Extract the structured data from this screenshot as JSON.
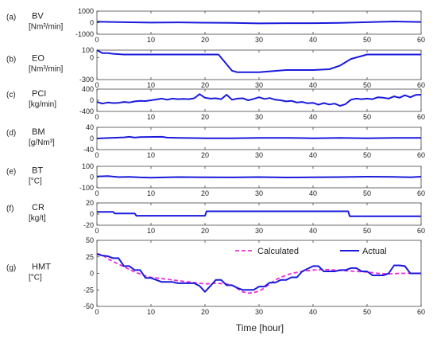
{
  "panels": [
    {
      "tag": "(a)",
      "name": "BV",
      "unit": "[Nm³/min]",
      "yticks": [
        "1000",
        "0",
        "-1000"
      ],
      "ylim": [
        -1000,
        1000
      ],
      "series": [
        {
          "name": "",
          "color": "#1a1adb",
          "style": "solid",
          "x": [
            0,
            5,
            10,
            15,
            20,
            25,
            30,
            35,
            40,
            45,
            50,
            55,
            60
          ],
          "y": [
            80,
            40,
            10,
            30,
            0,
            -20,
            -60,
            -40,
            -40,
            -20,
            40,
            100,
            60
          ]
        }
      ]
    },
    {
      "tag": "(b)",
      "name": "EO",
      "unit": "[Nm³/min]",
      "yticks": [
        "100",
        "0",
        "-300"
      ],
      "ylim": [
        -300,
        100
      ],
      "series": [
        {
          "name": "",
          "color": "#1a1adb",
          "style": "solid",
          "x": [
            0,
            1,
            2,
            3,
            5,
            10,
            15,
            20,
            22.5,
            25,
            26,
            30,
            35,
            40,
            43,
            45,
            47,
            50,
            55,
            60
          ],
          "y": [
            100,
            60,
            60,
            50,
            40,
            40,
            40,
            40,
            40,
            -180,
            -200,
            -200,
            -170,
            -170,
            -160,
            -110,
            -20,
            40,
            40,
            40
          ]
        }
      ]
    },
    {
      "tag": "(c)",
      "name": "PCI",
      "unit": "[kg/min]",
      "yticks": [
        "400",
        "0",
        "-400"
      ],
      "ylim": [
        -400,
        400
      ],
      "series": [
        {
          "name": "",
          "color": "#1a1adb",
          "style": "solid",
          "x": [
            0,
            1,
            2,
            3,
            4,
            5,
            6,
            7,
            8,
            9,
            10,
            11,
            12,
            13,
            14,
            15,
            16,
            17,
            18,
            19,
            20,
            21,
            22,
            23,
            24,
            25,
            26,
            27,
            28,
            29,
            30,
            31,
            32,
            33,
            34,
            35,
            36,
            37,
            38,
            39,
            40,
            41,
            42,
            43,
            44,
            45,
            46,
            47,
            48,
            49,
            50,
            51,
            52,
            53,
            54,
            55,
            56,
            57,
            58,
            59,
            60
          ],
          "y": [
            -60,
            -120,
            -80,
            -100,
            -90,
            -60,
            -80,
            -40,
            -20,
            -30,
            0,
            30,
            60,
            20,
            60,
            40,
            50,
            40,
            70,
            220,
            90,
            60,
            70,
            40,
            200,
            20,
            60,
            70,
            0,
            50,
            110,
            50,
            80,
            20,
            0,
            -40,
            -20,
            -80,
            -60,
            -110,
            -90,
            -160,
            -100,
            -150,
            -120,
            -200,
            -140,
            20,
            60,
            40,
            60,
            40,
            110,
            90,
            60,
            140,
            90,
            180,
            110,
            190,
            200
          ]
        }
      ]
    },
    {
      "tag": "(d)",
      "name": "BM",
      "unit": "[g/Nm³]",
      "yticks": [
        "40",
        "0",
        "-40"
      ],
      "ylim": [
        -40,
        40
      ],
      "series": [
        {
          "name": "",
          "color": "#1a1adb",
          "style": "solid",
          "x": [
            0,
            5,
            6,
            7,
            8,
            12,
            13,
            15,
            20,
            25,
            30,
            35,
            40,
            45,
            50,
            55,
            60
          ],
          "y": [
            0,
            4,
            6,
            3,
            5,
            6,
            3,
            2,
            1,
            1,
            2,
            2,
            1,
            2,
            1,
            2,
            2
          ]
        }
      ]
    },
    {
      "tag": "(e)",
      "name": "BT",
      "unit": "[°C]",
      "yticks": [
        "100",
        "0",
        "-100"
      ],
      "ylim": [
        -100,
        100
      ],
      "series": [
        {
          "name": "",
          "color": "#1a1adb",
          "style": "solid",
          "x": [
            0,
            2,
            4,
            6,
            8,
            10,
            15,
            20,
            25,
            30,
            35,
            40,
            45,
            50,
            55,
            58,
            60
          ],
          "y": [
            5,
            10,
            0,
            2,
            -3,
            -5,
            0,
            -2,
            -3,
            0,
            -4,
            -2,
            0,
            4,
            2,
            -2,
            4
          ]
        }
      ]
    },
    {
      "tag": "(f)",
      "name": "CR",
      "unit": "[kg/t]",
      "yticks": [
        "20",
        "0",
        "-20"
      ],
      "ylim": [
        -20,
        20
      ],
      "series": [
        {
          "name": "",
          "color": "#1a1adb",
          "style": "solid",
          "x": [
            0,
            3,
            3.3,
            7,
            7.3,
            20,
            20.3,
            46.5,
            46.8,
            60
          ],
          "y": [
            4,
            4,
            1,
            1,
            -3,
            -3,
            5,
            5,
            -4,
            -4
          ]
        }
      ]
    },
    {
      "tag": "(g)",
      "name": "HMT",
      "unit": "[°C]",
      "yticks": [
        "50",
        "25",
        "0",
        "-25",
        "-50"
      ],
      "ylim": [
        -50,
        50
      ],
      "series": [
        {
          "name": "Calculated",
          "color": "#ee2ad6",
          "style": "dashed",
          "x": [
            0,
            1,
            2,
            3,
            4,
            5,
            6,
            7,
            8,
            9,
            10,
            12,
            14,
            16,
            18,
            20,
            22,
            24,
            25,
            26,
            27,
            28,
            29,
            30,
            31,
            32,
            33,
            34,
            35,
            36,
            38,
            40,
            42,
            44,
            46,
            48,
            50,
            52,
            54,
            56,
            58,
            60
          ],
          "y": [
            30,
            28,
            22,
            18,
            14,
            10,
            6,
            2,
            -1,
            -4,
            -6,
            -8,
            -10,
            -12,
            -14,
            -16,
            -15,
            -16,
            -18,
            -23,
            -28,
            -30,
            -29,
            -27,
            -22,
            -16,
            -10,
            -6,
            -3,
            0,
            3,
            5,
            6,
            5,
            4,
            3,
            2,
            0,
            -1,
            0,
            0,
            0
          ]
        },
        {
          "name": "Actual",
          "color": "#1a1adb",
          "style": "solid",
          "x": [
            0,
            1,
            2,
            3,
            4,
            5,
            6,
            7,
            8,
            9,
            10,
            12,
            14,
            15,
            18,
            19,
            20,
            21,
            22,
            23,
            24,
            25,
            26,
            27,
            28,
            29,
            30,
            31,
            32,
            33,
            34,
            35,
            36,
            37,
            38,
            40,
            41,
            42,
            43,
            44,
            45,
            46,
            47,
            48,
            49,
            50,
            51,
            52,
            53,
            54,
            55,
            56,
            57,
            58,
            59,
            60
          ],
          "y": [
            29,
            27,
            26,
            23,
            23,
            11,
            11,
            5,
            5,
            -7,
            -7,
            -13,
            -13,
            -15,
            -15,
            -19,
            -28,
            -19,
            -10,
            -10,
            -18,
            -18,
            -22,
            -25,
            -25,
            -25,
            -20,
            -20,
            -14,
            -14,
            -10,
            -10,
            -6,
            -6,
            3,
            11,
            11,
            3,
            3,
            3,
            5,
            5,
            8,
            8,
            3,
            3,
            -3,
            -3,
            -3,
            0,
            12,
            12,
            11,
            0,
            0,
            0
          ]
        }
      ]
    }
  ],
  "xticks": [
    "0",
    "10",
    "20",
    "30",
    "40",
    "50",
    "60"
  ],
  "xlim": [
    0,
    60
  ],
  "xlabel": "Time [hour]",
  "legend": {
    "calculated": "Calculated",
    "actual": "Actual"
  },
  "chart_data": [
    {
      "type": "line",
      "tag": "(a)",
      "title": "BV",
      "ylabel": "[Nm³/min]",
      "xlabel": "",
      "xlim": [
        0,
        60
      ],
      "ylim": [
        -1000,
        1000
      ],
      "grid": false,
      "series": [
        {
          "name": "",
          "x": [
            0,
            5,
            10,
            15,
            20,
            25,
            30,
            35,
            40,
            45,
            50,
            55,
            60
          ],
          "values": [
            80,
            40,
            10,
            30,
            0,
            -20,
            -60,
            -40,
            -40,
            -20,
            40,
            100,
            60
          ]
        }
      ]
    },
    {
      "type": "line",
      "tag": "(b)",
      "title": "EO",
      "ylabel": "[Nm³/min]",
      "xlabel": "",
      "xlim": [
        0,
        60
      ],
      "ylim": [
        -300,
        100
      ],
      "grid": false,
      "series": [
        {
          "name": "",
          "x": [
            0,
            1,
            2,
            3,
            5,
            10,
            15,
            20,
            22.5,
            25,
            26,
            30,
            35,
            40,
            43,
            45,
            47,
            50,
            55,
            60
          ],
          "values": [
            100,
            60,
            60,
            50,
            40,
            40,
            40,
            40,
            40,
            -180,
            -200,
            -200,
            -170,
            -170,
            -160,
            -110,
            -20,
            40,
            40,
            40
          ]
        }
      ]
    },
    {
      "type": "line",
      "tag": "(c)",
      "title": "PCI",
      "ylabel": "[kg/min]",
      "xlabel": "",
      "xlim": [
        0,
        60
      ],
      "ylim": [
        -400,
        400
      ],
      "grid": false,
      "series": [
        {
          "name": "",
          "x": "0..60 step 1",
          "values": "see panels[2].series[0].y"
        }
      ]
    },
    {
      "type": "line",
      "tag": "(d)",
      "title": "BM",
      "ylabel": "[g/Nm³]",
      "xlabel": "",
      "xlim": [
        0,
        60
      ],
      "ylim": [
        -40,
        40
      ],
      "grid": false,
      "series": [
        {
          "name": "",
          "x": [
            0,
            5,
            6,
            7,
            8,
            12,
            13,
            15,
            20,
            25,
            30,
            35,
            40,
            45,
            50,
            55,
            60
          ],
          "values": [
            0,
            4,
            6,
            3,
            5,
            6,
            3,
            2,
            1,
            1,
            2,
            2,
            1,
            2,
            1,
            2,
            2
          ]
        }
      ]
    },
    {
      "type": "line",
      "tag": "(e)",
      "title": "BT",
      "ylabel": "[°C]",
      "xlabel": "",
      "xlim": [
        0,
        60
      ],
      "ylim": [
        -100,
        100
      ],
      "grid": false,
      "series": [
        {
          "name": "",
          "x": [
            0,
            2,
            4,
            6,
            8,
            10,
            15,
            20,
            25,
            30,
            35,
            40,
            45,
            50,
            55,
            58,
            60
          ],
          "values": [
            5,
            10,
            0,
            2,
            -3,
            -5,
            0,
            -2,
            -3,
            0,
            -4,
            -2,
            0,
            4,
            2,
            -2,
            4
          ]
        }
      ]
    },
    {
      "type": "line",
      "tag": "(f)",
      "title": "CR",
      "ylabel": "[kg/t]",
      "xlabel": "",
      "xlim": [
        0,
        60
      ],
      "ylim": [
        -20,
        20
      ],
      "grid": false,
      "series": [
        {
          "name": "",
          "x": [
            0,
            3,
            3.3,
            7,
            7.3,
            20,
            20.3,
            46.5,
            46.8,
            60
          ],
          "values": [
            4,
            4,
            1,
            1,
            -3,
            -3,
            5,
            5,
            -4,
            -4
          ]
        }
      ]
    },
    {
      "type": "line",
      "tag": "(g)",
      "title": "HMT",
      "ylabel": "[°C]",
      "xlabel": "Time [hour]",
      "xlim": [
        0,
        60
      ],
      "ylim": [
        -50,
        50
      ],
      "grid": false,
      "legend": "top-right",
      "series": [
        {
          "name": "Calculated",
          "x": "see panels[6].series[0].x",
          "values": "see panels[6].series[0].y"
        },
        {
          "name": "Actual",
          "x": "see panels[6].series[1].x",
          "values": "see panels[6].series[1].y"
        }
      ]
    }
  ]
}
